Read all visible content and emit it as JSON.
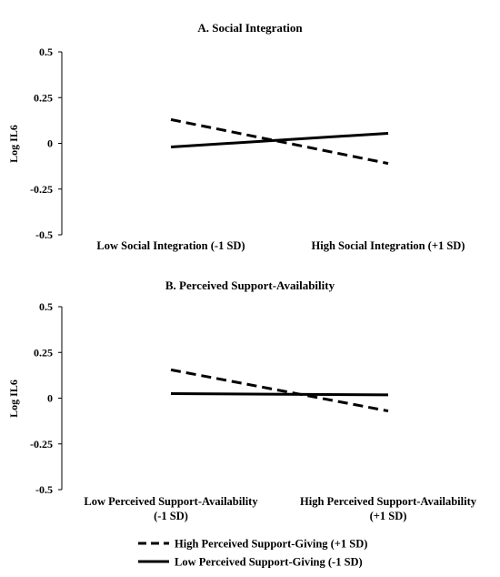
{
  "chart_data": [
    {
      "type": "line",
      "title": "A. Social Integration",
      "ylabel": "Log IL6",
      "xlabel": "",
      "categories": [
        [
          "Low Social Integration (-1 SD)"
        ],
        [
          "High Social Integration (+1 SD)"
        ]
      ],
      "ylim": [
        -0.5,
        0.5
      ],
      "yticks": [
        "0.5",
        "0.25",
        "0",
        "-0.25",
        "-0.5"
      ],
      "yticks_values": [
        0.5,
        0.25,
        0,
        -0.25,
        -0.5
      ],
      "grid": false,
      "series": [
        {
          "name": "High Perceived Support-Giving (+1 SD)",
          "style": "dashed",
          "values": [
            0.13,
            -0.11
          ]
        },
        {
          "name": "Low Perceived Support-Giving (-1 SD)",
          "style": "solid",
          "values": [
            -0.02,
            0.055
          ]
        }
      ]
    },
    {
      "type": "line",
      "title": "B. Perceived Support-Availability",
      "ylabel": "Log IL6",
      "xlabel": "",
      "categories": [
        [
          "Low Perceived Support-Availability",
          "(-1 SD)"
        ],
        [
          "High Perceived Support-Availability",
          "(+1 SD)"
        ]
      ],
      "ylim": [
        -0.5,
        0.5
      ],
      "yticks": [
        "0.5",
        "0.25",
        "0",
        "-0.25",
        "-0.5"
      ],
      "yticks_values": [
        0.5,
        0.25,
        0,
        -0.25,
        -0.5
      ],
      "grid": false,
      "series": [
        {
          "name": "High Perceived Support-Giving (+1 SD)",
          "style": "dashed",
          "values": [
            0.155,
            -0.07
          ]
        },
        {
          "name": "Low Perceived Support-Giving (-1 SD)",
          "style": "solid",
          "values": [
            0.025,
            0.018
          ]
        }
      ]
    }
  ],
  "legend": {
    "placement": "bottom-center",
    "items": [
      {
        "label": "High Perceived Support-Giving (+1 SD)",
        "style": "dashed"
      },
      {
        "label": "Low Perceived Support-Giving (-1 SD)",
        "style": "solid"
      }
    ]
  }
}
